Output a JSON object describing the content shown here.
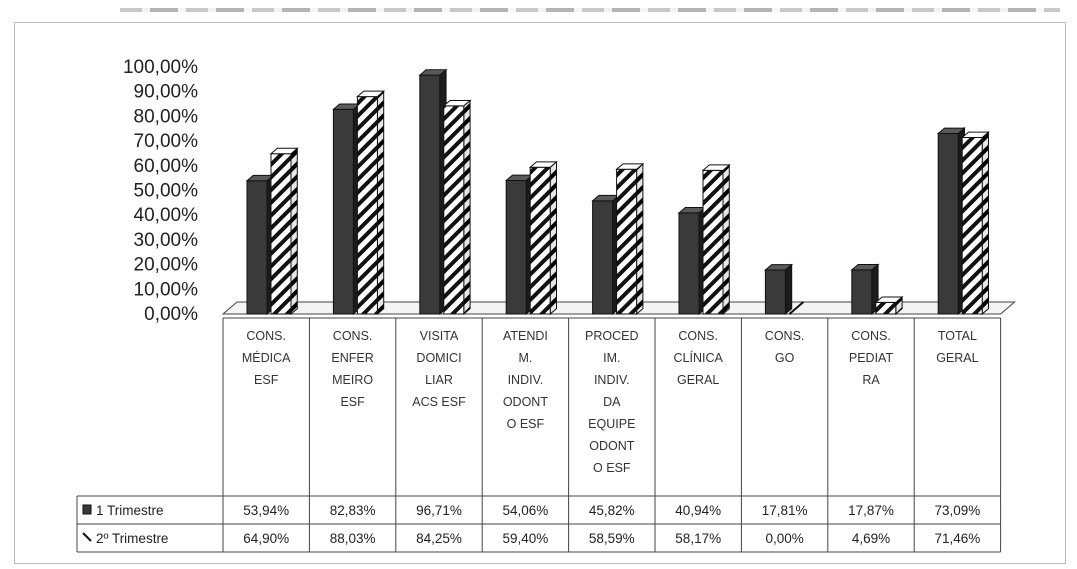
{
  "chart_data": {
    "type": "bar",
    "categories": [
      [
        "CONS.",
        "MÉDICA",
        "ESF"
      ],
      [
        "CONS.",
        "ENFER",
        "MEIRO",
        "ESF"
      ],
      [
        "VISITA",
        "DOMICI",
        "LIAR",
        "ACS  ESF"
      ],
      [
        "ATENDI",
        "M.",
        "INDIV.",
        "ODONT",
        "O ESF"
      ],
      [
        "PROCED",
        "IM.",
        "INDIV.",
        "DA",
        "EQUIPE",
        "ODONT",
        "O ESF"
      ],
      [
        "CONS.",
        "CLÍNICA",
        "GERAL"
      ],
      [
        "CONS.",
        "GO"
      ],
      [
        "CONS.",
        "PEDIAT",
        "RA"
      ],
      [
        "TOTAL",
        "GERAL"
      ]
    ],
    "series": [
      {
        "name": "1 Trimestre",
        "values": [
          53.94,
          82.83,
          96.71,
          54.06,
          45.82,
          40.94,
          17.81,
          17.87,
          73.09
        ],
        "labels": [
          "53,94%",
          "82,83%",
          "96,71%",
          "54,06%",
          "45,82%",
          "40,94%",
          "17,81%",
          "17,87%",
          "73,09%"
        ],
        "fill": "dark"
      },
      {
        "name": "2º Trimestre",
        "values": [
          64.9,
          88.03,
          84.25,
          59.4,
          58.59,
          58.17,
          0.0,
          4.69,
          71.46
        ],
        "labels": [
          "64,90%",
          "88,03%",
          "84,25%",
          "59,40%",
          "58,59%",
          "58,17%",
          "0,00%",
          "4,69%",
          "71,46%"
        ],
        "fill": "hatched"
      }
    ],
    "y_ticks": [
      "100,00%",
      "90,00%",
      "80,00%",
      "70,00%",
      "60,00%",
      "50,00%",
      "40,00%",
      "30,00%",
      "20,00%",
      "10,00%",
      "0,00%"
    ],
    "ylim": [
      0,
      100
    ],
    "grid": false,
    "legend": "data-table",
    "colors": {
      "series1": "#3a3a3a",
      "series2_stripe": "#111111",
      "series2_bg": "#ffffff",
      "table_line": "#444444"
    }
  }
}
